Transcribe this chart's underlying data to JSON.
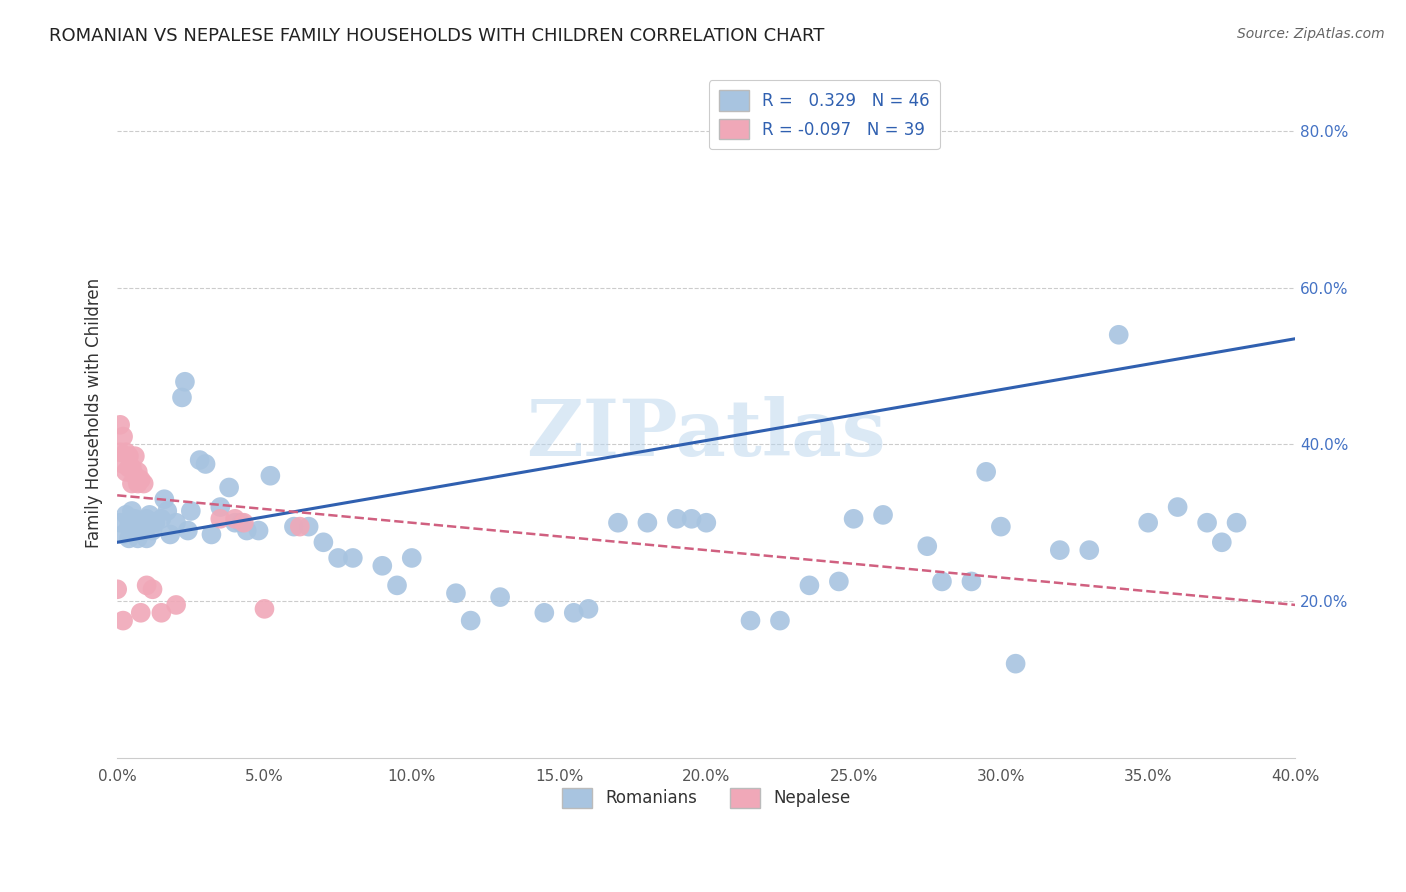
{
  "title": "ROMANIAN VS NEPALESE FAMILY HOUSEHOLDS WITH CHILDREN CORRELATION CHART",
  "source": "Source: ZipAtlas.com",
  "ylabel": "Family Households with Children",
  "watermark": "ZIPatlas",
  "legend_r_romanian": "0.329",
  "legend_n_romanian": "46",
  "legend_r_nepalese": "-0.097",
  "legend_n_nepalese": "39",
  "xlim": [
    0.0,
    0.4
  ],
  "ylim": [
    0.0,
    0.88
  ],
  "xticks": [
    0.0,
    0.05,
    0.1,
    0.15,
    0.2,
    0.25,
    0.3,
    0.35,
    0.4
  ],
  "yticks_right": [
    0.2,
    0.4,
    0.6,
    0.8
  ],
  "romanian_color": "#a8c4e0",
  "nepalese_color": "#f0a8b8",
  "romanian_line_color": "#3060b0",
  "nepalese_line_color": "#d06080",
  "romanian_line": [
    0.0,
    0.275,
    0.4,
    0.535
  ],
  "nepalese_line": [
    0.0,
    0.335,
    0.4,
    0.195
  ],
  "romanian_dots": [
    [
      0.001,
      0.3
    ],
    [
      0.002,
      0.285
    ],
    [
      0.003,
      0.31
    ],
    [
      0.004,
      0.295
    ],
    [
      0.004,
      0.28
    ],
    [
      0.005,
      0.315
    ],
    [
      0.005,
      0.3
    ],
    [
      0.006,
      0.29
    ],
    [
      0.006,
      0.305
    ],
    [
      0.007,
      0.295
    ],
    [
      0.007,
      0.28
    ],
    [
      0.008,
      0.295
    ],
    [
      0.009,
      0.3
    ],
    [
      0.01,
      0.28
    ],
    [
      0.01,
      0.305
    ],
    [
      0.011,
      0.31
    ],
    [
      0.012,
      0.29
    ],
    [
      0.013,
      0.3
    ],
    [
      0.015,
      0.305
    ],
    [
      0.016,
      0.33
    ],
    [
      0.017,
      0.315
    ],
    [
      0.018,
      0.285
    ],
    [
      0.02,
      0.3
    ],
    [
      0.022,
      0.46
    ],
    [
      0.023,
      0.48
    ],
    [
      0.024,
      0.29
    ],
    [
      0.025,
      0.315
    ],
    [
      0.028,
      0.38
    ],
    [
      0.03,
      0.375
    ],
    [
      0.032,
      0.285
    ],
    [
      0.035,
      0.32
    ],
    [
      0.038,
      0.345
    ],
    [
      0.04,
      0.3
    ],
    [
      0.042,
      0.3
    ],
    [
      0.044,
      0.29
    ],
    [
      0.048,
      0.29
    ],
    [
      0.052,
      0.36
    ],
    [
      0.06,
      0.295
    ],
    [
      0.065,
      0.295
    ],
    [
      0.07,
      0.275
    ],
    [
      0.075,
      0.255
    ],
    [
      0.08,
      0.255
    ],
    [
      0.09,
      0.245
    ],
    [
      0.095,
      0.22
    ],
    [
      0.1,
      0.255
    ],
    [
      0.115,
      0.21
    ],
    [
      0.12,
      0.175
    ],
    [
      0.13,
      0.205
    ],
    [
      0.145,
      0.185
    ],
    [
      0.155,
      0.185
    ],
    [
      0.16,
      0.19
    ],
    [
      0.17,
      0.3
    ],
    [
      0.18,
      0.3
    ],
    [
      0.19,
      0.305
    ],
    [
      0.195,
      0.305
    ],
    [
      0.2,
      0.3
    ],
    [
      0.215,
      0.175
    ],
    [
      0.225,
      0.175
    ],
    [
      0.235,
      0.22
    ],
    [
      0.245,
      0.225
    ],
    [
      0.25,
      0.305
    ],
    [
      0.26,
      0.31
    ],
    [
      0.275,
      0.27
    ],
    [
      0.28,
      0.225
    ],
    [
      0.29,
      0.225
    ],
    [
      0.295,
      0.365
    ],
    [
      0.3,
      0.295
    ],
    [
      0.305,
      0.12
    ],
    [
      0.32,
      0.265
    ],
    [
      0.33,
      0.265
    ],
    [
      0.34,
      0.54
    ],
    [
      0.35,
      0.3
    ],
    [
      0.36,
      0.32
    ],
    [
      0.37,
      0.3
    ],
    [
      0.375,
      0.275
    ],
    [
      0.38,
      0.3
    ]
  ],
  "nepalese_dots": [
    [
      0.001,
      0.425
    ],
    [
      0.001,
      0.39
    ],
    [
      0.002,
      0.41
    ],
    [
      0.002,
      0.375
    ],
    [
      0.003,
      0.39
    ],
    [
      0.003,
      0.365
    ],
    [
      0.004,
      0.37
    ],
    [
      0.004,
      0.385
    ],
    [
      0.005,
      0.37
    ],
    [
      0.005,
      0.35
    ],
    [
      0.006,
      0.36
    ],
    [
      0.006,
      0.385
    ],
    [
      0.007,
      0.365
    ],
    [
      0.007,
      0.35
    ],
    [
      0.008,
      0.355
    ],
    [
      0.009,
      0.35
    ],
    [
      0.01,
      0.22
    ],
    [
      0.012,
      0.215
    ],
    [
      0.015,
      0.185
    ],
    [
      0.02,
      0.195
    ],
    [
      0.035,
      0.305
    ],
    [
      0.04,
      0.305
    ],
    [
      0.043,
      0.3
    ],
    [
      0.05,
      0.19
    ],
    [
      0.062,
      0.295
    ],
    [
      0.0,
      0.215
    ],
    [
      0.002,
      0.175
    ],
    [
      0.008,
      0.185
    ]
  ]
}
